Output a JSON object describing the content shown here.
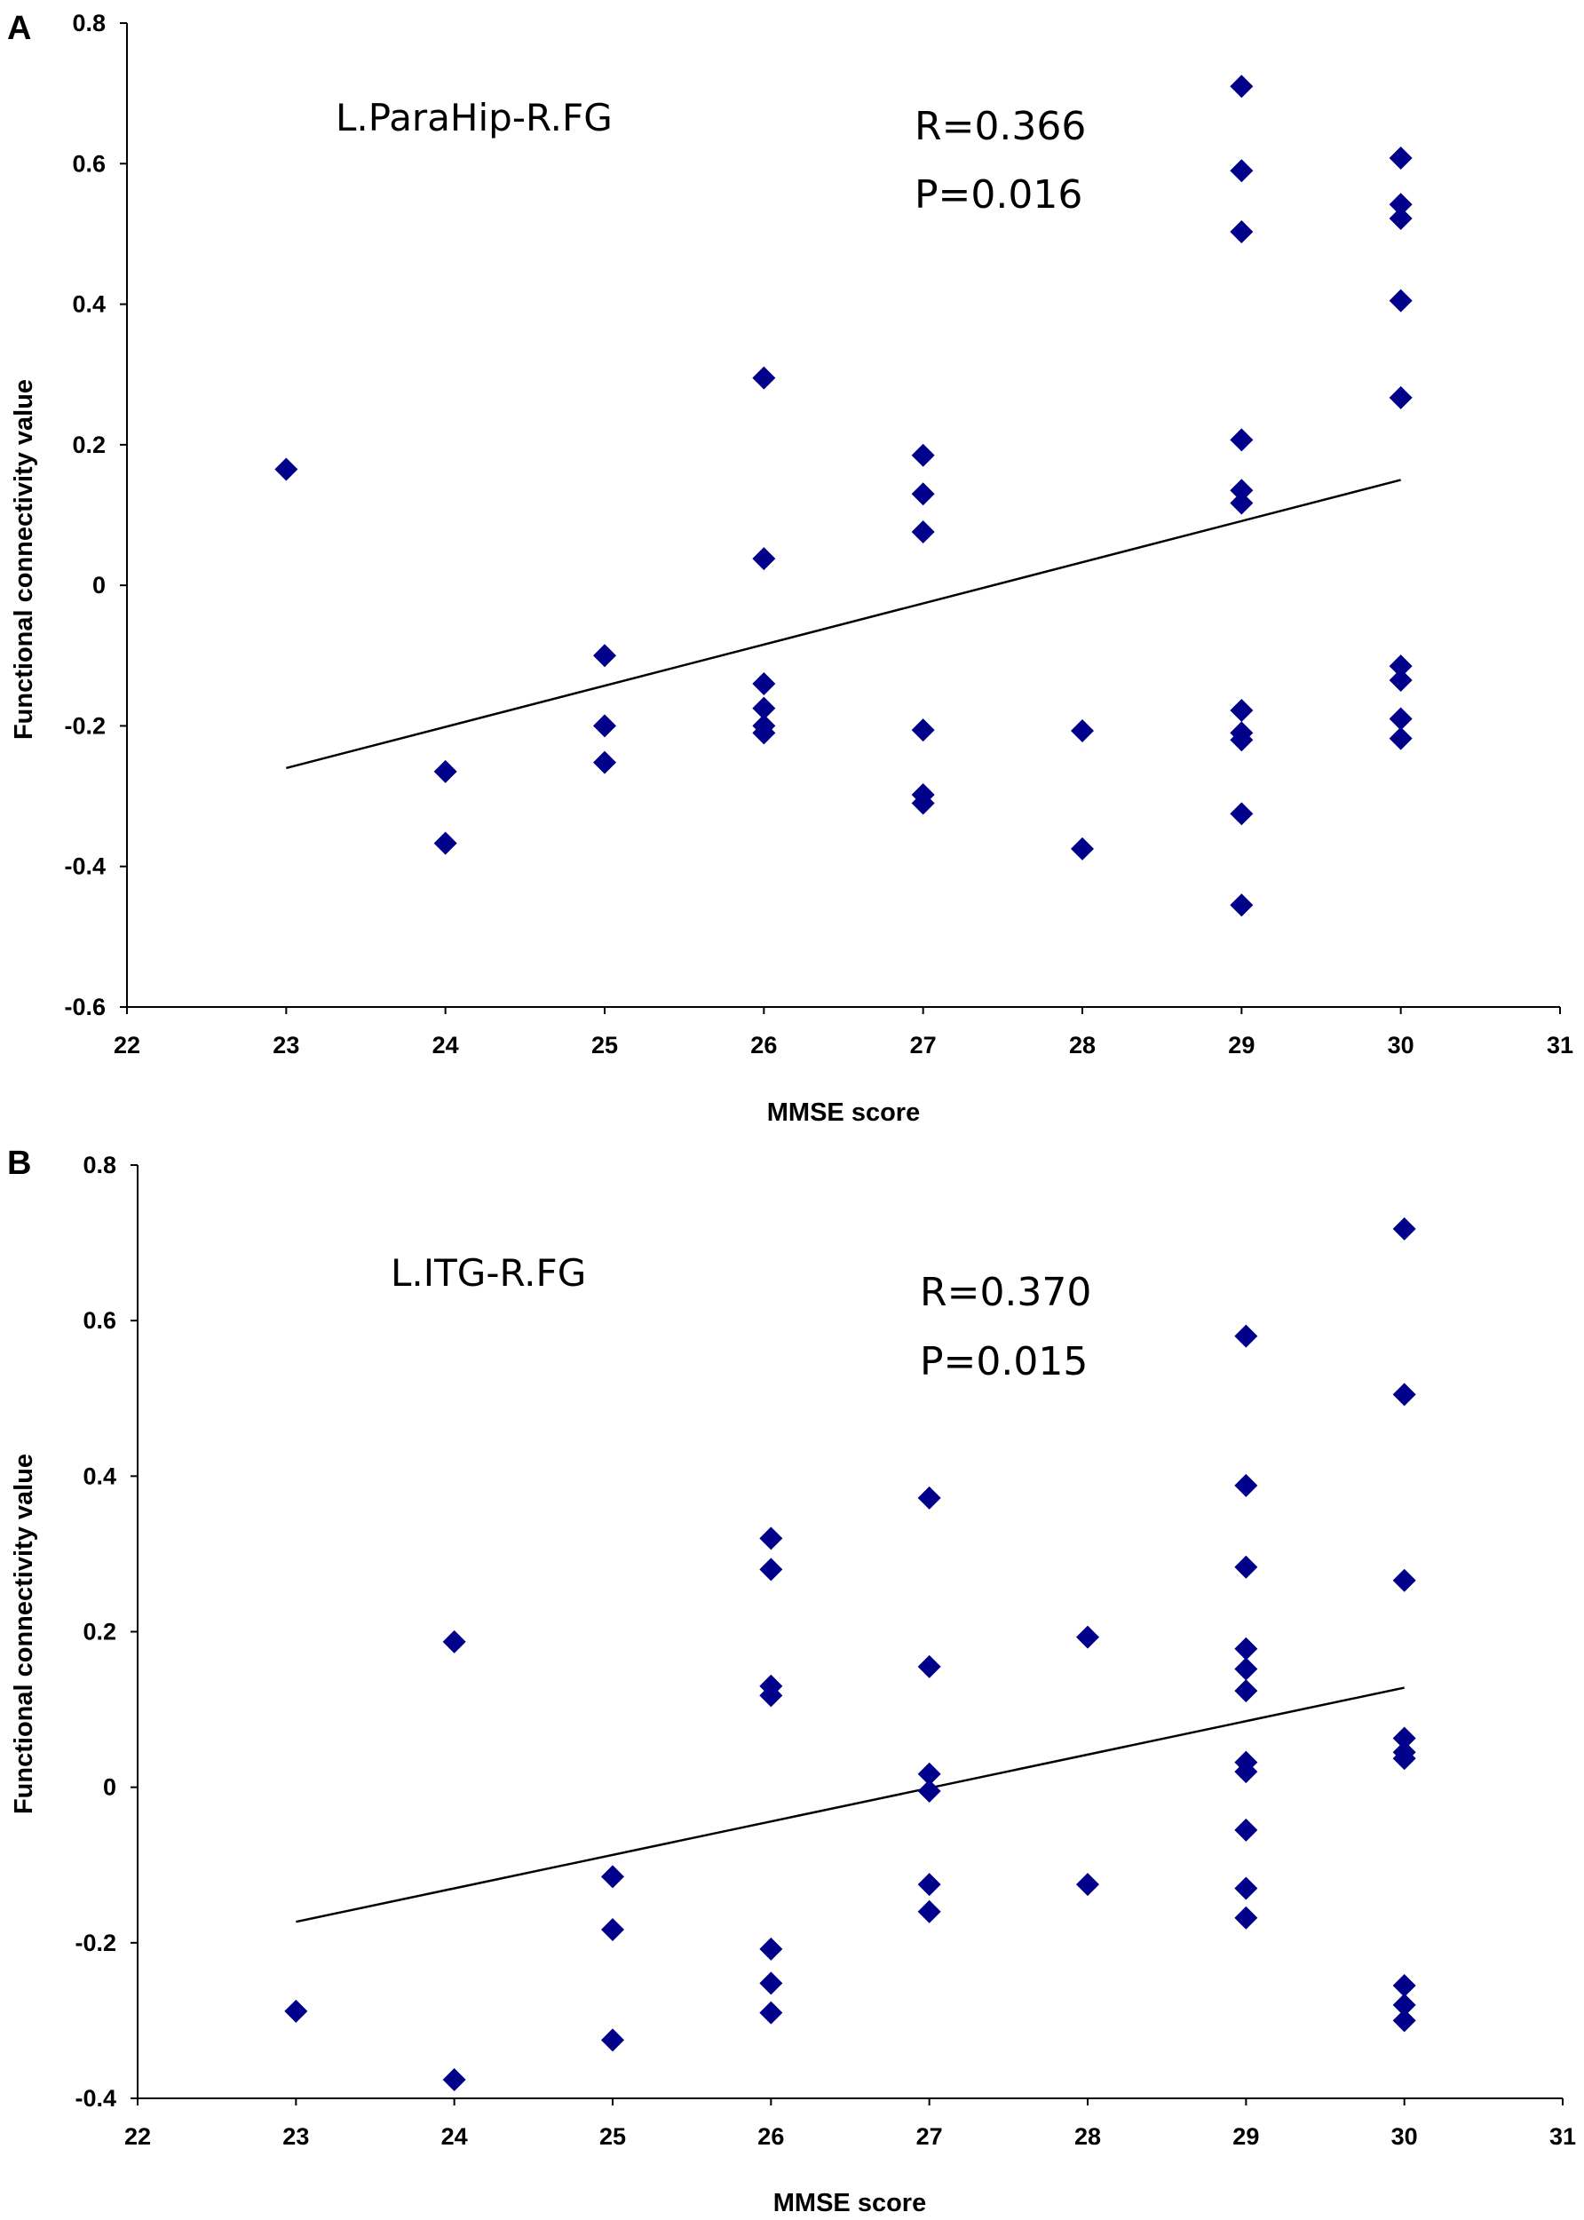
{
  "chart_data": [
    {
      "type": "scatter",
      "panel_label": "A",
      "annotation": "L.ParaHip-R.FG",
      "stats": {
        "r": "R=0.366",
        "p": "P=0.016"
      },
      "xlabel": "MMSE score",
      "ylabel": "Functional connectivity value",
      "xlim": [
        22,
        31
      ],
      "ylim": [
        -0.6,
        0.8
      ],
      "x_ticks": [
        22,
        23,
        24,
        25,
        26,
        27,
        28,
        29,
        30,
        31
      ],
      "y_ticks": [
        -0.6,
        -0.4,
        -0.2,
        0,
        0.2,
        0.4,
        0.6,
        0.8
      ],
      "marker_color": "#00008B",
      "grid": false,
      "trendline": {
        "x": [
          23,
          30
        ],
        "y": [
          -0.26,
          0.15
        ]
      },
      "points": [
        {
          "x": 23,
          "y": 0.165
        },
        {
          "x": 24,
          "y": -0.265
        },
        {
          "x": 24,
          "y": -0.367
        },
        {
          "x": 25,
          "y": -0.1
        },
        {
          "x": 25,
          "y": -0.2
        },
        {
          "x": 25,
          "y": -0.252
        },
        {
          "x": 26,
          "y": 0.295
        },
        {
          "x": 26,
          "y": 0.038
        },
        {
          "x": 26,
          "y": -0.14
        },
        {
          "x": 26,
          "y": -0.175
        },
        {
          "x": 26,
          "y": -0.2
        },
        {
          "x": 26,
          "y": -0.21
        },
        {
          "x": 27,
          "y": 0.185
        },
        {
          "x": 27,
          "y": 0.13
        },
        {
          "x": 27,
          "y": 0.076
        },
        {
          "x": 27,
          "y": -0.206
        },
        {
          "x": 27,
          "y": -0.298
        },
        {
          "x": 27,
          "y": -0.31
        },
        {
          "x": 28,
          "y": -0.207
        },
        {
          "x": 28,
          "y": -0.375
        },
        {
          "x": 29,
          "y": 0.71
        },
        {
          "x": 29,
          "y": 0.59
        },
        {
          "x": 29,
          "y": 0.503
        },
        {
          "x": 29,
          "y": 0.207
        },
        {
          "x": 29,
          "y": 0.135
        },
        {
          "x": 29,
          "y": 0.117
        },
        {
          "x": 29,
          "y": -0.178
        },
        {
          "x": 29,
          "y": -0.21
        },
        {
          "x": 29,
          "y": -0.22
        },
        {
          "x": 29,
          "y": -0.325
        },
        {
          "x": 29,
          "y": -0.455
        },
        {
          "x": 30,
          "y": 0.608
        },
        {
          "x": 30,
          "y": 0.542
        },
        {
          "x": 30,
          "y": 0.522
        },
        {
          "x": 30,
          "y": 0.405
        },
        {
          "x": 30,
          "y": 0.267
        },
        {
          "x": 30,
          "y": -0.115
        },
        {
          "x": 30,
          "y": -0.135
        },
        {
          "x": 30,
          "y": -0.19
        },
        {
          "x": 30,
          "y": -0.218
        }
      ]
    },
    {
      "type": "scatter",
      "panel_label": "B",
      "annotation": "L.ITG-R.FG",
      "stats": {
        "r": "R=0.370",
        "p": "P=0.015"
      },
      "xlabel": "MMSE score",
      "ylabel": "Functional connectivity value",
      "xlim": [
        22,
        31
      ],
      "ylim": [
        -0.4,
        0.8
      ],
      "x_ticks": [
        22,
        23,
        24,
        25,
        26,
        27,
        28,
        29,
        30,
        31
      ],
      "y_ticks": [
        -0.4,
        -0.2,
        0,
        0.2,
        0.4,
        0.6,
        0.8
      ],
      "marker_color": "#00008B",
      "grid": false,
      "trendline": {
        "x": [
          23,
          30
        ],
        "y": [
          -0.173,
          0.128
        ]
      },
      "points": [
        {
          "x": 23,
          "y": -0.288
        },
        {
          "x": 24,
          "y": 0.187
        },
        {
          "x": 24,
          "y": -0.376
        },
        {
          "x": 25,
          "y": -0.115
        },
        {
          "x": 25,
          "y": -0.183
        },
        {
          "x": 25,
          "y": -0.325
        },
        {
          "x": 26,
          "y": 0.32
        },
        {
          "x": 26,
          "y": 0.28
        },
        {
          "x": 26,
          "y": 0.13
        },
        {
          "x": 26,
          "y": 0.118
        },
        {
          "x": 26,
          "y": -0.208
        },
        {
          "x": 26,
          "y": -0.252
        },
        {
          "x": 26,
          "y": -0.29
        },
        {
          "x": 27,
          "y": 0.372
        },
        {
          "x": 27,
          "y": 0.155
        },
        {
          "x": 27,
          "y": 0.017
        },
        {
          "x": 27,
          "y": -0.005
        },
        {
          "x": 27,
          "y": -0.125
        },
        {
          "x": 27,
          "y": -0.16
        },
        {
          "x": 28,
          "y": 0.193
        },
        {
          "x": 28,
          "y": -0.125
        },
        {
          "x": 29,
          "y": 0.58
        },
        {
          "x": 29,
          "y": 0.388
        },
        {
          "x": 29,
          "y": 0.283
        },
        {
          "x": 29,
          "y": 0.178
        },
        {
          "x": 29,
          "y": 0.152
        },
        {
          "x": 29,
          "y": 0.124
        },
        {
          "x": 29,
          "y": 0.032
        },
        {
          "x": 29,
          "y": 0.02
        },
        {
          "x": 29,
          "y": -0.055
        },
        {
          "x": 29,
          "y": -0.13
        },
        {
          "x": 29,
          "y": -0.168
        },
        {
          "x": 30,
          "y": 0.718
        },
        {
          "x": 30,
          "y": 0.505
        },
        {
          "x": 30,
          "y": 0.266
        },
        {
          "x": 30,
          "y": 0.063
        },
        {
          "x": 30,
          "y": 0.045
        },
        {
          "x": 30,
          "y": 0.037
        },
        {
          "x": 30,
          "y": -0.255
        },
        {
          "x": 30,
          "y": -0.28
        },
        {
          "x": 30,
          "y": -0.3
        }
      ]
    }
  ]
}
